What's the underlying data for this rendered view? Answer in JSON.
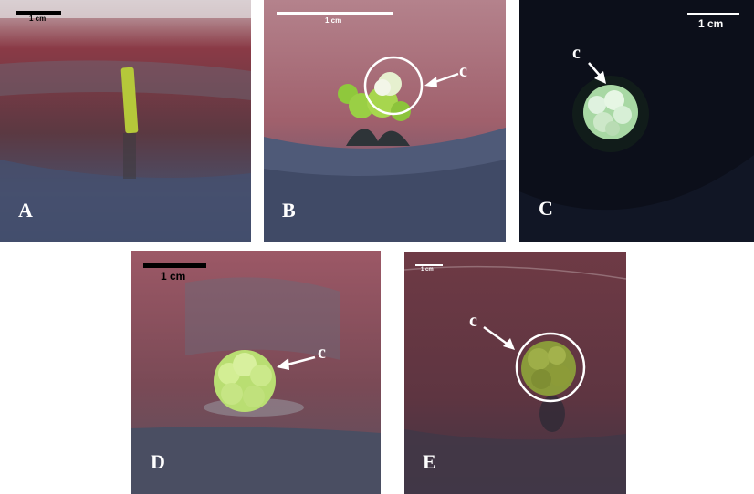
{
  "panels": [
    {
      "id": "A",
      "letter": "A",
      "scale_label": "1 cm",
      "scale_color": "#000000",
      "callout": ""
    },
    {
      "id": "B",
      "letter": "B",
      "scale_label": "1 cm",
      "scale_color": "#ffffff",
      "callout": "c"
    },
    {
      "id": "C",
      "letter": "C",
      "scale_label": "1 cm",
      "scale_color": "#ffffff",
      "callout": "c"
    },
    {
      "id": "D",
      "letter": "D",
      "scale_label": "1 cm",
      "scale_color": "#000000",
      "callout": "c"
    },
    {
      "id": "E",
      "letter": "E",
      "scale_label": "1 cm",
      "scale_color": "#ffffff",
      "callout": "c"
    }
  ],
  "colors": {
    "background": "#ffffff",
    "medium_red": "#7a3a45",
    "dish_blue": "#4a5a7a",
    "dark_background": "#0c0f1a",
    "callus_green": "#b8e08a",
    "label_white": "#ffffff"
  }
}
